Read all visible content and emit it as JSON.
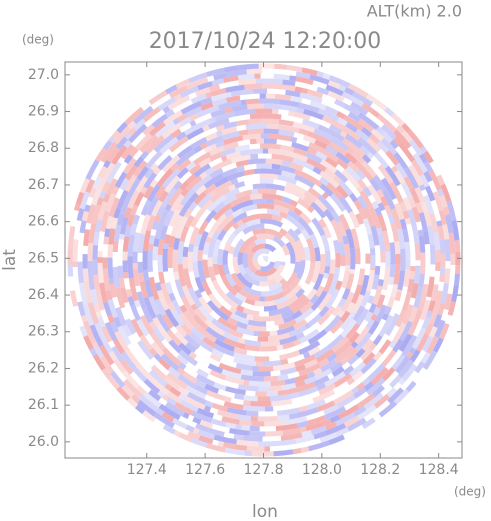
{
  "chart_data": {
    "type": "radar-ppi",
    "title": "2017/10/24 12:20:00",
    "subtitle": "ALT(km) 2.0",
    "y_unit": "(deg)",
    "x_unit": "(deg)",
    "ylabel": "lat",
    "xlabel": "lon",
    "xlim": [
      127.12,
      128.48
    ],
    "ylim": [
      25.956,
      27.035
    ],
    "xticks": [
      127.4,
      127.6,
      127.8,
      {
        "value": 128,
        "label": "128.0"
      },
      128.2,
      128.4
    ],
    "yticks": [
      {
        "value": 26,
        "label": "26.0"
      },
      26.1,
      26.2,
      26.3,
      26.4,
      26.5,
      26.6,
      26.7,
      26.8,
      26.9,
      {
        "value": 27,
        "label": "27.0"
      }
    ],
    "grid": false
  }
}
